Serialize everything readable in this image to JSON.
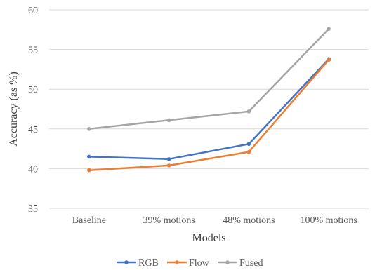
{
  "chart_data": {
    "type": "line",
    "title": "",
    "xlabel": "Models",
    "ylabel": "Accuracy (as %)",
    "categories": [
      "Baseline",
      "39% motions",
      "48% motions",
      "100% motions"
    ],
    "ylim": [
      35,
      60
    ],
    "yticks": [
      35,
      40,
      45,
      50,
      55,
      60
    ],
    "grid": true,
    "legend_position": "bottom",
    "series": [
      {
        "name": "RGB",
        "color": "#4472C4",
        "values": [
          41.5,
          41.2,
          43.1,
          53.8
        ]
      },
      {
        "name": "Flow",
        "color": "#ED7D31",
        "values": [
          39.8,
          40.4,
          42.1,
          53.7
        ]
      },
      {
        "name": "Fused",
        "color": "#A5A5A5",
        "values": [
          45.0,
          46.1,
          47.2,
          57.6
        ]
      }
    ]
  }
}
